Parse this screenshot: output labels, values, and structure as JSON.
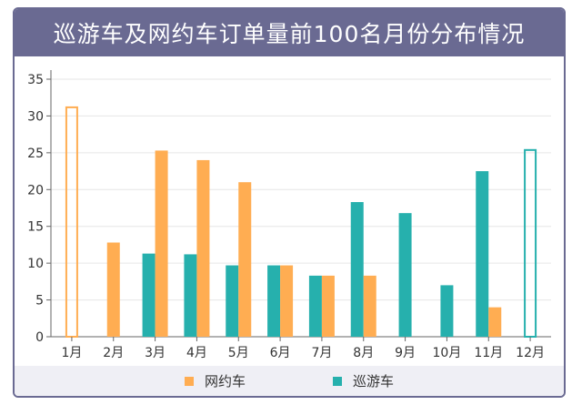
{
  "header": {
    "title": "巡游车及网约车订单量前100名月份分布情况"
  },
  "colors": {
    "series_a": "#ffad52",
    "series_b": "#26b0ad",
    "title_bg": "#6a6a92",
    "legend_bg": "#efeff5"
  },
  "legend": [
    {
      "label": "网约车",
      "color": "#ffad52"
    },
    {
      "label": "巡游车",
      "color": "#26b0ad"
    }
  ],
  "chart_data": {
    "type": "bar",
    "title": "巡游车及网约车订单量前100名月份分布情况",
    "xlabel": "",
    "ylabel": "",
    "ylim": [
      0,
      35
    ],
    "yticks": [
      0,
      5,
      10,
      15,
      20,
      25,
      30,
      35
    ],
    "grid": true,
    "legend_position": "bottom",
    "categories": [
      "1月",
      "2月",
      "3月",
      "4月",
      "5月",
      "6月",
      "7月",
      "8月",
      "9月",
      "10月",
      "11月",
      "12月"
    ],
    "series": [
      {
        "name": "巡游车",
        "color": "#26b0ad",
        "values": [
          0,
          0,
          11.3,
          11.2,
          9.7,
          9.7,
          8.3,
          18.3,
          16.8,
          7,
          22.5,
          25.5
        ]
      },
      {
        "name": "网约车",
        "color": "#ffad52",
        "values": [
          31.3,
          12.8,
          25.3,
          24,
          21,
          9.7,
          8.3,
          8.3,
          0,
          0,
          4,
          0
        ]
      }
    ],
    "highlighted": [
      {
        "series": "网约车",
        "category": "1月",
        "style": "outline"
      },
      {
        "series": "巡游车",
        "category": "12月",
        "style": "outline"
      }
    ]
  }
}
